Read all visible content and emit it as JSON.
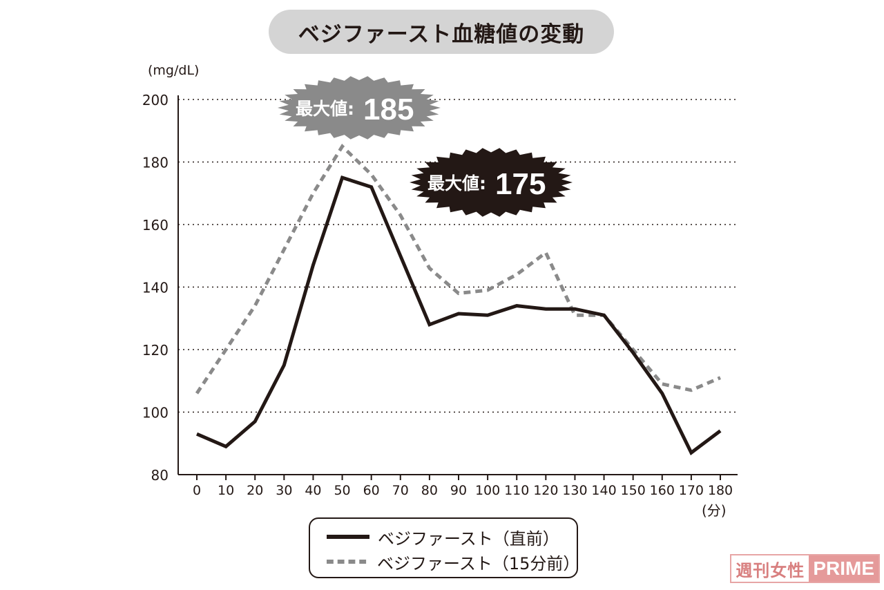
{
  "title": "ベジファースト血糖値の変動",
  "chart_data": {
    "type": "line",
    "ylabel": "(mg/dL)",
    "xlabel": "(分)",
    "x": [
      0,
      10,
      20,
      30,
      40,
      50,
      60,
      70,
      80,
      90,
      100,
      110,
      120,
      130,
      140,
      150,
      160,
      170,
      180
    ],
    "x_tick_labels": [
      "0",
      "10",
      "20",
      "30",
      "40",
      "50",
      "60",
      "70",
      "80",
      "90",
      "100",
      "110",
      "120",
      "130",
      "140",
      "150",
      "160",
      "170",
      "180"
    ],
    "ylim": [
      80,
      200
    ],
    "y_ticks": [
      80,
      100,
      120,
      140,
      160,
      180,
      200
    ],
    "grid": "horizontal dotted",
    "series": [
      {
        "name": "ベジファースト（直前）",
        "style": "solid",
        "color": "#231815",
        "values": [
          93,
          89,
          97,
          115,
          147,
          175,
          172,
          150,
          128,
          131.5,
          131,
          134,
          133,
          133,
          131,
          119,
          106,
          87,
          94
        ]
      },
      {
        "name": "ベジファースト（15分前）",
        "style": "dashed",
        "color": "#8a8a8a",
        "values": [
          106,
          120,
          134,
          152,
          170,
          185,
          176,
          163,
          146,
          138,
          139,
          144,
          151,
          131,
          131,
          120,
          109,
          107,
          111
        ]
      }
    ],
    "annotations": [
      {
        "label": "最大値:",
        "value": "185",
        "style": "gray-burst",
        "series": "ベジファースト（15分前）"
      },
      {
        "label": "最大値:",
        "value": "175",
        "style": "black-burst",
        "series": "ベジファースト（直前）"
      }
    ]
  },
  "legend": {
    "items": [
      {
        "label": "ベジファースト（直前）",
        "style": "solid"
      },
      {
        "label": "ベジファースト（15分前）",
        "style": "dashed"
      }
    ]
  },
  "watermark": {
    "left": "週刊女性",
    "right": "PRIME"
  },
  "colors": {
    "dark": "#231815",
    "gray": "#8a8a8a",
    "grid": "#231815",
    "pill": "#d4d4d4",
    "wm": "#e59a9a"
  }
}
